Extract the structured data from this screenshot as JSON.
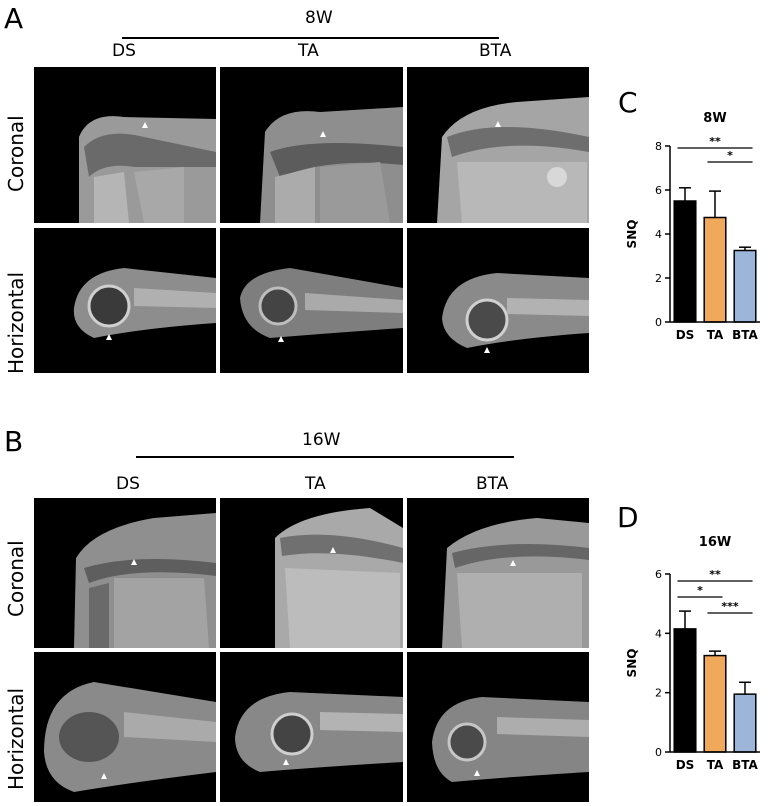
{
  "panels": {
    "A": {
      "letter": "A",
      "timepoint": "8W",
      "groups": [
        "DS",
        "TA",
        "BTA"
      ],
      "rows": [
        "Coronal",
        "Horizontal"
      ]
    },
    "B": {
      "letter": "B",
      "timepoint": "16W",
      "groups": [
        "DS",
        "TA",
        "BTA"
      ],
      "rows": [
        "Coronal",
        "Horizontal"
      ]
    },
    "C": {
      "letter": "C"
    },
    "D": {
      "letter": "D"
    }
  },
  "colors": {
    "DS": "#000000",
    "TA": "#f0a85a",
    "BTA": "#9db5d9"
  },
  "chart_data": [
    {
      "type": "bar",
      "title": "8W",
      "ylabel": "SNQ",
      "categories": [
        "DS",
        "TA",
        "BTA"
      ],
      "values": [
        5.5,
        4.75,
        3.25
      ],
      "errors": [
        0.6,
        1.2,
        0.15
      ],
      "ylim": [
        0,
        8
      ],
      "yticks": [
        "0",
        "2",
        "4",
        "6",
        "8"
      ],
      "significance": [
        {
          "pair": [
            "DS",
            "BTA"
          ],
          "label": "**"
        },
        {
          "pair": [
            "TA",
            "BTA"
          ],
          "label": "*"
        }
      ]
    },
    {
      "type": "bar",
      "title": "16W",
      "ylabel": "SNQ",
      "categories": [
        "DS",
        "TA",
        "BTA"
      ],
      "values": [
        4.15,
        3.25,
        1.95
      ],
      "errors": [
        0.6,
        0.15,
        0.4
      ],
      "ylim": [
        0,
        6
      ],
      "yticks": [
        "0",
        "2",
        "4",
        "6"
      ],
      "significance": [
        {
          "pair": [
            "DS",
            "BTA"
          ],
          "label": "**"
        },
        {
          "pair": [
            "DS",
            "TA"
          ],
          "label": "*"
        },
        {
          "pair": [
            "TA",
            "BTA"
          ],
          "label": "***"
        }
      ]
    }
  ]
}
